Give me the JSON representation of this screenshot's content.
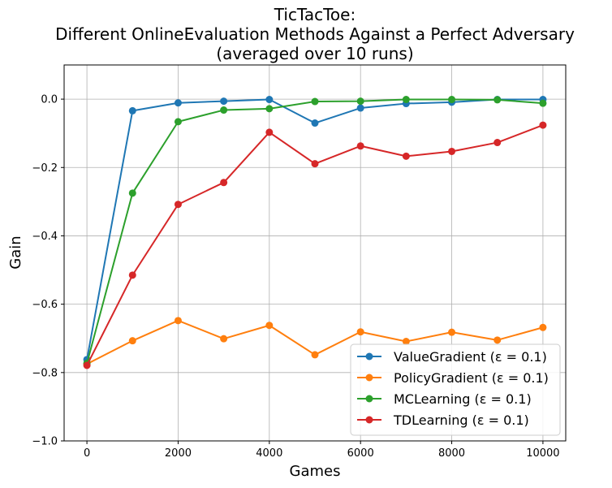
{
  "chart_data": {
    "type": "line",
    "title_lines": [
      "TicTacToe:",
      "Different OnlineEvaluation Methods Against a Perfect Adversary",
      "(averaged over 10 runs)"
    ],
    "xlabel": "Games",
    "ylabel": "Gain",
    "xlim": [
      -500,
      10500
    ],
    "ylim": [
      -1.0,
      0.1
    ],
    "xticks": [
      0,
      2000,
      4000,
      6000,
      8000,
      10000
    ],
    "xtick_labels": [
      "0",
      "2000",
      "4000",
      "6000",
      "8000",
      "10000"
    ],
    "yticks": [
      -1.0,
      -0.8,
      -0.6,
      -0.4,
      -0.2,
      0.0
    ],
    "ytick_labels": [
      "−1.0",
      "−0.8",
      "−0.6",
      "−0.4",
      "−0.2",
      "0.0"
    ],
    "grid": true,
    "legend_position": "lower-right",
    "x": [
      0,
      1000,
      2000,
      3000,
      4000,
      5000,
      6000,
      7000,
      8000,
      9000,
      10000
    ],
    "series": [
      {
        "name": "ValueGradient (ε = 0.1)",
        "color": "#1f77b4",
        "values": [
          -0.762,
          -0.034,
          -0.011,
          -0.006,
          -0.001,
          -0.07,
          -0.026,
          -0.013,
          -0.009,
          -0.001,
          -0.001
        ]
      },
      {
        "name": "PolicyGradient (ε = 0.1)",
        "color": "#ff7f0e",
        "values": [
          -0.775,
          -0.707,
          -0.648,
          -0.701,
          -0.662,
          -0.748,
          -0.681,
          -0.709,
          -0.682,
          -0.705,
          -0.668
        ]
      },
      {
        "name": "MCLearning (ε = 0.1)",
        "color": "#2ca02c",
        "values": [
          -0.773,
          -0.275,
          -0.066,
          -0.032,
          -0.028,
          -0.007,
          -0.006,
          -0.001,
          -0.001,
          -0.002,
          -0.012
        ]
      },
      {
        "name": "TDLearning (ε = 0.1)",
        "color": "#d62728",
        "values": [
          -0.779,
          -0.515,
          -0.308,
          -0.244,
          -0.097,
          -0.189,
          -0.137,
          -0.167,
          -0.153,
          -0.127,
          -0.076
        ]
      }
    ]
  }
}
